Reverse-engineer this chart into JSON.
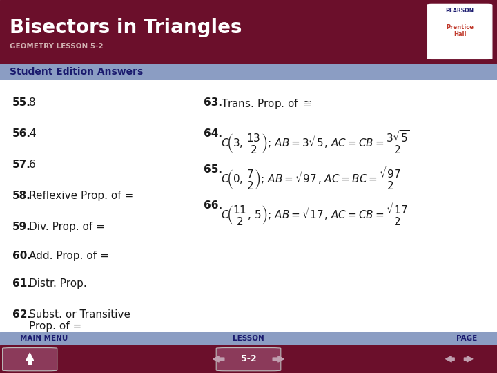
{
  "title": "Bisectors in Triangles",
  "subtitle": "GEOMETRY LESSON 5-2",
  "section": "Student Edition Answers",
  "bg_header": "#6b0f2b",
  "bg_section": "#8b9dc3",
  "bg_body": "#ffffff",
  "bg_footer": "#6b0f2b",
  "bg_footer_bar": "#8b9dc3",
  "text_color_title": "#ffffff",
  "text_color_section": "#1a1a6e",
  "text_color_body": "#1a1a1a",
  "answers_left": [
    {
      "num": "55.",
      "ans": "8"
    },
    {
      "num": "56.",
      "ans": "4"
    },
    {
      "num": "57.",
      "ans": "6"
    },
    {
      "num": "58.",
      "ans": "Reflexive Prop. of ="
    },
    {
      "num": "59.",
      "ans": "Div. Prop. of ="
    },
    {
      "num": "60.",
      "ans": "Add. Prop. of ="
    },
    {
      "num": "61.",
      "ans": "Distr. Prop."
    },
    {
      "num": "62.",
      "ans": "Subst. or Transitive\nProp. of ="
    }
  ],
  "footer_left": "MAIN MENU",
  "footer_center": "LESSON",
  "footer_right": "PAGE",
  "lesson_number": "5-2"
}
